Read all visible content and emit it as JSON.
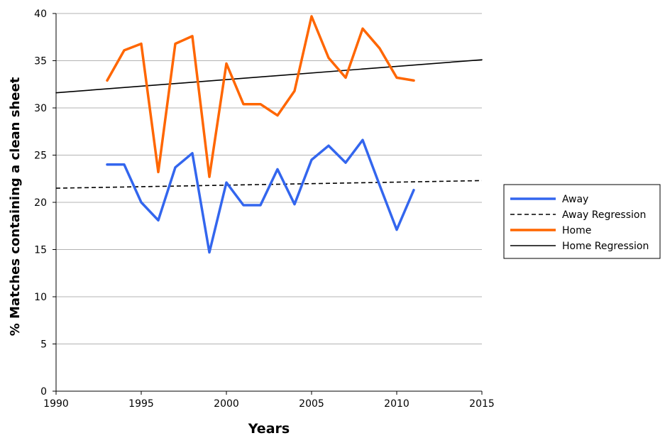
{
  "chart_data": {
    "type": "line",
    "title": "",
    "xlabel": "Years",
    "ylabel": "% Matches containing a clean sheet",
    "xlim": [
      1990,
      2015
    ],
    "ylim": [
      0,
      40
    ],
    "x_ticks": [
      1990,
      1995,
      2000,
      2005,
      2010,
      2015
    ],
    "y_ticks": [
      0,
      5,
      10,
      15,
      20,
      25,
      30,
      35,
      40
    ],
    "grid": "horizontal",
    "legend_position": "right",
    "colors": {
      "away": "#3366ee",
      "home": "#ff6600",
      "regression": "#000000",
      "grid": "#b3b3b3"
    },
    "series": [
      {
        "name": "Away",
        "style": "solid",
        "color": "#3366ee",
        "x": [
          1993,
          1994,
          1995,
          1996,
          1997,
          1998,
          1999,
          2000,
          2001,
          2002,
          2003,
          2004,
          2005,
          2006,
          2007,
          2008,
          2009,
          2010,
          2011
        ],
        "values": [
          24.0,
          24.0,
          20.0,
          18.1,
          23.7,
          25.2,
          14.7,
          22.1,
          19.7,
          19.7,
          23.5,
          19.8,
          24.5,
          26.0,
          24.2,
          26.6,
          21.8,
          17.1,
          21.3
        ]
      },
      {
        "name": "Away Regression",
        "style": "dashed",
        "color": "#000000",
        "x": [
          1990,
          2015
        ],
        "values": [
          21.5,
          22.3
        ]
      },
      {
        "name": "Home",
        "style": "solid",
        "color": "#ff6600",
        "x": [
          1993,
          1994,
          1995,
          1996,
          1997,
          1998,
          1999,
          2000,
          2001,
          2002,
          2003,
          2004,
          2005,
          2006,
          2007,
          2008,
          2009,
          2010,
          2011
        ],
        "values": [
          32.9,
          36.1,
          36.8,
          23.2,
          36.8,
          37.6,
          22.7,
          34.7,
          30.4,
          30.4,
          29.2,
          31.8,
          39.7,
          35.3,
          33.2,
          38.4,
          36.3,
          33.2,
          32.9
        ]
      },
      {
        "name": "Home Regression",
        "style": "solid",
        "color": "#000000",
        "x": [
          1990,
          2015
        ],
        "values": [
          31.6,
          35.1
        ]
      }
    ]
  }
}
